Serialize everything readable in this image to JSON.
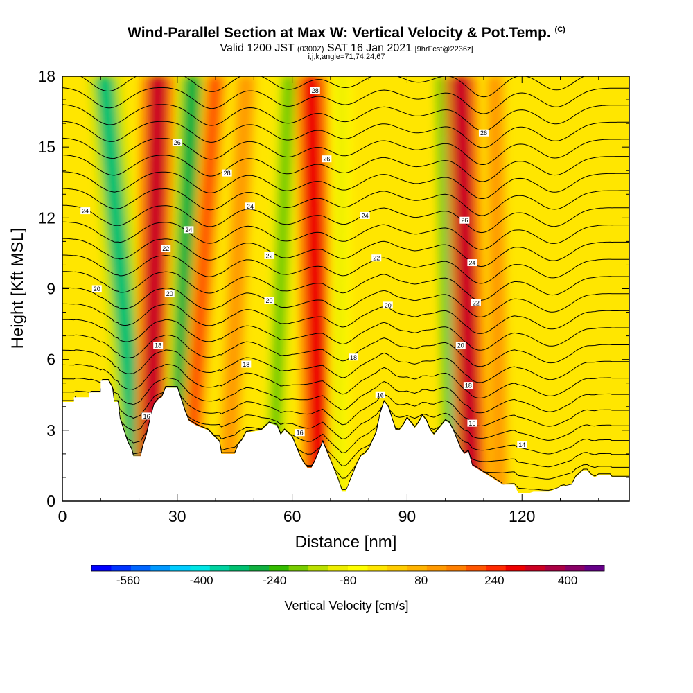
{
  "title": {
    "main": "Wind-Parallel Section at Max W: Vertical Velocity & Pot.Temp.",
    "copyright": "(C)",
    "valid_pre": "Valid 1200 JST",
    "valid_utc": "(0300Z)",
    "valid_post": "SAT 16 Jan 2021",
    "forecast": "[9hrFcst@2236z]",
    "indices": "i,j,k,angle=71,74,24,67"
  },
  "chart_data": {
    "type": "heatmap",
    "xlabel": "Distance [nm]",
    "ylabel": "Height [Kft MSL]",
    "xlim": [
      0,
      148
    ],
    "ylim": [
      0,
      18
    ],
    "x_ticks": [
      0,
      30,
      60,
      90,
      120
    ],
    "y_ticks": [
      0,
      3,
      6,
      9,
      12,
      15,
      18
    ],
    "colorbar": {
      "label": "Vertical Velocity [cm/s]",
      "tick_labels": [
        -560,
        -400,
        -240,
        -80,
        80,
        240,
        400
      ],
      "colors": [
        "#0000ff",
        "#0033ff",
        "#0066ff",
        "#0099ff",
        "#00ccff",
        "#00e5e5",
        "#00d2a0",
        "#00c070",
        "#10b040",
        "#33bb00",
        "#77cc00",
        "#bbe000",
        "#eeee00",
        "#ffff00",
        "#ffe600",
        "#ffcc00",
        "#ffb300",
        "#ff9900",
        "#ff7f00",
        "#ff5500",
        "#ff2a00",
        "#ee0000",
        "#cc0022",
        "#aa0044",
        "#880066",
        "#660088"
      ]
    },
    "velocity_features": [
      {
        "x_bottom": 20,
        "x_top": 11,
        "w_cm_s": -300
      },
      {
        "x_bottom": 23,
        "x_top": 25,
        "w_cm_s": 320
      },
      {
        "x_bottom": 30,
        "x_top": 34,
        "w_cm_s": -260
      },
      {
        "x_bottom": 33,
        "x_top": 40,
        "w_cm_s": 180
      },
      {
        "x_bottom": 43,
        "x_top": 48,
        "w_cm_s": 120
      },
      {
        "x_bottom": 55,
        "x_top": 59,
        "w_cm_s": -180
      },
      {
        "x_bottom": 67,
        "x_top": 65,
        "w_cm_s": 300
      },
      {
        "x_bottom": 72,
        "x_top": 73,
        "w_cm_s": -100
      },
      {
        "x_bottom": 104,
        "x_top": 102,
        "w_cm_s": -340
      },
      {
        "x_bottom": 107,
        "x_top": 104,
        "w_cm_s": 320
      },
      {
        "x_bottom": 114,
        "x_top": 113,
        "w_cm_s": 100
      }
    ],
    "terrain": [
      [
        0,
        4.2
      ],
      [
        3,
        4.2
      ],
      [
        3,
        4.4
      ],
      [
        7,
        4.4
      ],
      [
        7,
        4.6
      ],
      [
        10,
        4.6
      ],
      [
        10,
        5.1
      ],
      [
        12,
        5.1
      ],
      [
        13,
        4.8
      ],
      [
        13.5,
        4.2
      ],
      [
        14.5,
        4.2
      ],
      [
        15,
        3.5
      ],
      [
        16,
        3
      ],
      [
        17,
        2.5
      ],
      [
        18,
        2.2
      ],
      [
        18.5,
        1.9
      ],
      [
        20.5,
        1.9
      ],
      [
        21,
        2.3
      ],
      [
        22,
        2.8
      ],
      [
        23,
        3.5
      ],
      [
        24,
        4.1
      ],
      [
        25,
        4.3
      ],
      [
        26,
        4.4
      ],
      [
        27,
        4.8
      ],
      [
        30,
        4.8
      ],
      [
        31,
        4.3
      ],
      [
        32,
        3.8
      ],
      [
        33,
        3.4
      ],
      [
        35,
        3.2
      ],
      [
        38,
        3
      ],
      [
        41,
        2.5
      ],
      [
        41.5,
        2
      ],
      [
        45,
        2
      ],
      [
        46,
        2.4
      ],
      [
        47,
        2.6
      ],
      [
        48,
        2.9
      ],
      [
        52,
        3
      ],
      [
        54,
        3.3
      ],
      [
        56,
        3.2
      ],
      [
        57,
        2.8
      ],
      [
        58,
        3
      ],
      [
        60,
        2.7
      ],
      [
        61,
        2.3
      ],
      [
        62,
        1.9
      ],
      [
        63,
        1.6
      ],
      [
        64,
        1.4
      ],
      [
        65,
        1.4
      ],
      [
        66,
        1.7
      ],
      [
        67,
        2.1
      ],
      [
        68,
        2.5
      ],
      [
        69,
        2.1
      ],
      [
        70,
        1.7
      ],
      [
        71,
        1.3
      ],
      [
        72,
        0.9
      ],
      [
        73,
        0.4
      ],
      [
        74,
        0.4
      ],
      [
        75,
        0.8
      ],
      [
        76,
        1.2
      ],
      [
        77,
        1.6
      ],
      [
        78,
        1.9
      ],
      [
        79,
        2
      ],
      [
        80,
        2.2
      ],
      [
        82,
        2.9
      ],
      [
        83,
        3.7
      ],
      [
        84,
        4.2
      ],
      [
        85,
        4
      ],
      [
        86,
        3.5
      ],
      [
        87,
        3
      ],
      [
        88,
        3
      ],
      [
        89,
        3.2
      ],
      [
        90,
        3.5
      ],
      [
        91,
        3.3
      ],
      [
        92,
        3.1
      ],
      [
        93,
        3.3
      ],
      [
        94,
        3.6
      ],
      [
        95,
        3.4
      ],
      [
        96,
        3
      ],
      [
        97,
        2.8
      ],
      [
        98,
        3
      ],
      [
        99,
        3.2
      ],
      [
        100,
        3.4
      ],
      [
        101,
        3.3
      ],
      [
        102,
        3
      ],
      [
        103,
        2.6
      ],
      [
        104,
        2.2
      ],
      [
        105,
        2
      ],
      [
        106,
        2.1
      ],
      [
        107,
        1.5
      ],
      [
        108,
        1.4
      ],
      [
        110,
        1.2
      ],
      [
        112,
        1
      ],
      [
        115,
        0.7
      ],
      [
        118,
        0.7
      ],
      [
        119,
        0.35
      ],
      [
        122,
        0.35
      ],
      [
        123,
        0.4
      ],
      [
        127,
        0.4
      ],
      [
        130,
        0.6
      ],
      [
        133,
        0.7
      ],
      [
        134,
        1
      ],
      [
        136,
        1.3
      ],
      [
        137,
        1.3
      ],
      [
        138,
        1.1
      ],
      [
        139,
        1
      ],
      [
        140,
        1.1
      ],
      [
        143,
        1.1
      ],
      [
        143.5,
        1
      ],
      [
        148,
        1
      ]
    ],
    "isentrope_labels": [
      {
        "text": "28",
        "x": 66,
        "y": 17.4
      },
      {
        "text": "26",
        "x": 30,
        "y": 15.2
      },
      {
        "text": "26",
        "x": 69,
        "y": 14.5
      },
      {
        "text": "26",
        "x": 110,
        "y": 15.6
      },
      {
        "text": "28",
        "x": 43,
        "y": 13.9
      },
      {
        "text": "24",
        "x": 6,
        "y": 12.3
      },
      {
        "text": "24",
        "x": 49,
        "y": 12.5
      },
      {
        "text": "24",
        "x": 79,
        "y": 12.1
      },
      {
        "text": "26",
        "x": 105,
        "y": 11.9
      },
      {
        "text": "24",
        "x": 33,
        "y": 11.5
      },
      {
        "text": "22",
        "x": 27,
        "y": 10.7
      },
      {
        "text": "22",
        "x": 54,
        "y": 10.4
      },
      {
        "text": "22",
        "x": 82,
        "y": 10.3
      },
      {
        "text": "24",
        "x": 107,
        "y": 10.1
      },
      {
        "text": "20",
        "x": 9,
        "y": 9.0
      },
      {
        "text": "20",
        "x": 28,
        "y": 8.8
      },
      {
        "text": "20",
        "x": 54,
        "y": 8.5
      },
      {
        "text": "20",
        "x": 85,
        "y": 8.3
      },
      {
        "text": "22",
        "x": 108,
        "y": 8.4
      },
      {
        "text": "18",
        "x": 25,
        "y": 6.6
      },
      {
        "text": "20",
        "x": 104,
        "y": 6.6
      },
      {
        "text": "18",
        "x": 48,
        "y": 5.8
      },
      {
        "text": "18",
        "x": 76,
        "y": 6.1
      },
      {
        "text": "18",
        "x": 106,
        "y": 4.9
      },
      {
        "text": "16",
        "x": 83,
        "y": 4.5
      },
      {
        "text": "16",
        "x": 22,
        "y": 3.6
      },
      {
        "text": "16",
        "x": 107,
        "y": 3.3
      },
      {
        "text": "16",
        "x": 62,
        "y": 2.9
      },
      {
        "text": "14",
        "x": 120,
        "y": 2.4
      }
    ]
  }
}
